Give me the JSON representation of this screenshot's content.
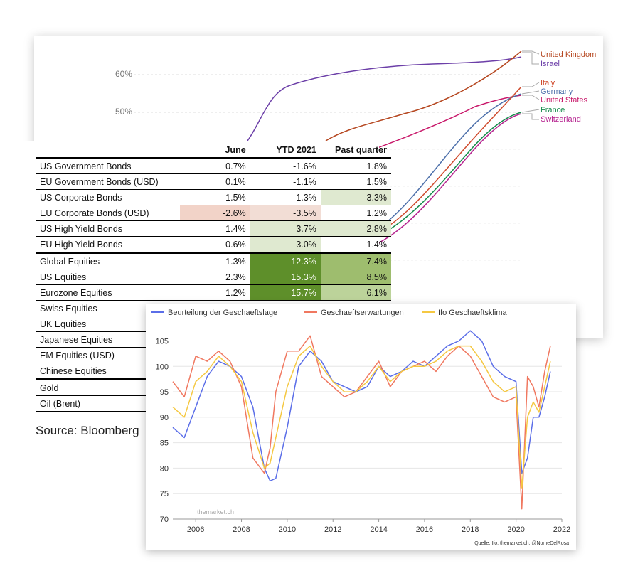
{
  "vaccination_chart": {
    "y_ticks": [
      "60%",
      "50%"
    ],
    "countries": [
      {
        "name": "United Kingdom",
        "color": "#b5461f"
      },
      {
        "name": "Israel",
        "color": "#6c3fa8"
      },
      {
        "name": "Italy",
        "color": "#cf4a2c"
      },
      {
        "name": "Germany",
        "color": "#4c6faa"
      },
      {
        "name": "United States",
        "color": "#c8186a"
      },
      {
        "name": "France",
        "color": "#158b4b"
      },
      {
        "name": "Switzerland",
        "color": "#b5238f"
      }
    ]
  },
  "returns_table": {
    "headers": [
      "June",
      "YTD 2021",
      "Past quarter"
    ],
    "rows": [
      {
        "name": "US Government Bonds",
        "june": "0.7%",
        "ytd": "-1.6%",
        "pq": "1.8%",
        "ytd_color": "",
        "pq_color": "",
        "june_color": ""
      },
      {
        "name": "EU Government Bonds (USD)",
        "june": "0.1%",
        "ytd": "-1.1%",
        "pq": "1.5%",
        "ytd_color": "",
        "pq_color": "",
        "june_color": ""
      },
      {
        "name": "US Corporate Bonds",
        "june": "1.5%",
        "ytd": "-1.3%",
        "pq": "3.3%",
        "ytd_color": "",
        "pq_color": "#dfe9d0",
        "june_color": ""
      },
      {
        "name": "EU Corporate Bonds (USD)",
        "june": "-2.6%",
        "ytd": "-3.5%",
        "pq": "1.2%",
        "ytd_color": "#f2ddd5",
        "pq_color": "",
        "june_color": "#f2d3c8"
      },
      {
        "name": "US High Yield Bonds",
        "june": "1.4%",
        "ytd": "3.7%",
        "pq": "2.8%",
        "ytd_color": "#dfe9d0",
        "pq_color": "#dfe9d0",
        "june_color": ""
      },
      {
        "name": "EU High Yield Bonds",
        "june": "0.6%",
        "ytd": "3.0%",
        "pq": "1.4%",
        "ytd_color": "#dfe9d0",
        "pq_color": "",
        "june_color": ""
      },
      {
        "name": "Global Equities",
        "june": "1.3%",
        "ytd": "12.3%",
        "pq": "7.4%",
        "ytd_color": "#5e8f2a",
        "pq_color": "#9ebd6e",
        "june_color": ""
      },
      {
        "name": "US Equities",
        "june": "2.3%",
        "ytd": "15.3%",
        "pq": "8.5%",
        "ytd_color": "#5e8f2a",
        "pq_color": "#9ebd6e",
        "june_color": ""
      },
      {
        "name": "Eurozone Equities",
        "june": "1.2%",
        "ytd": "15.7%",
        "pq": "6.1%",
        "ytd_color": "#5e8f2a",
        "pq_color": "#bcd39a",
        "june_color": ""
      },
      {
        "name": "Swiss Equities",
        "june": "",
        "ytd": "",
        "pq": "",
        "ytd_color": "",
        "pq_color": "",
        "june_color": ""
      },
      {
        "name": "UK Equities",
        "june": "",
        "ytd": "",
        "pq": "",
        "ytd_color": "",
        "pq_color": "",
        "june_color": ""
      },
      {
        "name": "Japanese Equities",
        "june": "",
        "ytd": "",
        "pq": "",
        "ytd_color": "",
        "pq_color": "",
        "june_color": ""
      },
      {
        "name": "EM Equities (USD)",
        "june": "",
        "ytd": "",
        "pq": "",
        "ytd_color": "",
        "pq_color": "",
        "june_color": ""
      },
      {
        "name": "Chinese Equities",
        "june": "",
        "ytd": "",
        "pq": "",
        "ytd_color": "",
        "pq_color": "",
        "june_color": ""
      },
      {
        "name": "Gold",
        "june": "",
        "ytd": "",
        "pq": "",
        "ytd_color": "",
        "pq_color": "",
        "june_color": ""
      },
      {
        "name": "Oil (Brent)",
        "june": "",
        "ytd": "",
        "pq": "",
        "ytd_color": "",
        "pq_color": "",
        "june_color": ""
      }
    ],
    "source": "Source: Bloomberg"
  },
  "chart_data": {
    "type": "line",
    "title": "",
    "xlabel": "",
    "ylabel": "",
    "xlim": [
      2005,
      2022
    ],
    "ylim": [
      70,
      108
    ],
    "x_ticks": [
      "2006",
      "2008",
      "2010",
      "2012",
      "2014",
      "2016",
      "2018",
      "2020",
      "2022"
    ],
    "y_ticks": [
      "105",
      "100",
      "95",
      "90",
      "85",
      "80",
      "75",
      "70"
    ],
    "grid": true,
    "legend_position": "top",
    "watermark": "themarket.ch",
    "source_note": "Quelle: Ifo,  themarket.ch, @NomeDelRosa",
    "x": [
      2005.0,
      2005.5,
      2006.0,
      2006.5,
      2007.0,
      2007.5,
      2008.0,
      2008.5,
      2009.0,
      2009.25,
      2009.5,
      2010.0,
      2010.5,
      2011.0,
      2011.5,
      2012.0,
      2012.5,
      2013.0,
      2013.5,
      2014.0,
      2014.5,
      2015.0,
      2015.5,
      2016.0,
      2016.5,
      2017.0,
      2017.5,
      2018.0,
      2018.5,
      2019.0,
      2019.5,
      2020.0,
      2020.25,
      2020.5,
      2020.75,
      2021.0,
      2021.25,
      2021.5
    ],
    "series": [
      {
        "name": "Beurteilung der Geschaeftslage",
        "color": "#5b6ee8",
        "values": [
          88,
          86,
          92,
          98,
          101,
          100,
          98,
          92,
          80,
          77.5,
          78,
          88,
          100,
          103,
          101,
          97,
          96,
          95,
          96,
          100,
          98,
          99,
          101,
          100,
          102,
          104,
          105,
          107,
          105,
          100,
          98,
          97,
          79,
          82,
          90,
          90,
          94,
          99
        ]
      },
      {
        "name": "Geschaeftserwartungen",
        "color": "#f07860",
        "values": [
          97,
          94,
          102,
          101,
          103,
          101,
          96,
          82,
          79,
          84,
          95,
          103,
          103,
          106,
          98,
          96,
          94,
          95,
          98,
          101,
          96,
          99,
          100,
          101,
          99,
          102,
          104,
          102,
          98,
          94,
          93,
          94,
          72,
          98,
          96,
          92,
          99,
          104
        ]
      },
      {
        "name": "Ifo Geschaeftsklima",
        "color": "#f5c842",
        "values": [
          92,
          90,
          97,
          99,
          102,
          100,
          97,
          87,
          80,
          81,
          86,
          96,
          102,
          104,
          100,
          97,
          95,
          95,
          97,
          100,
          97,
          99,
          100,
          100,
          101,
          103,
          104,
          104,
          101,
          97,
          95,
          96,
          76,
          90,
          93,
          91,
          96,
          101
        ]
      }
    ]
  }
}
